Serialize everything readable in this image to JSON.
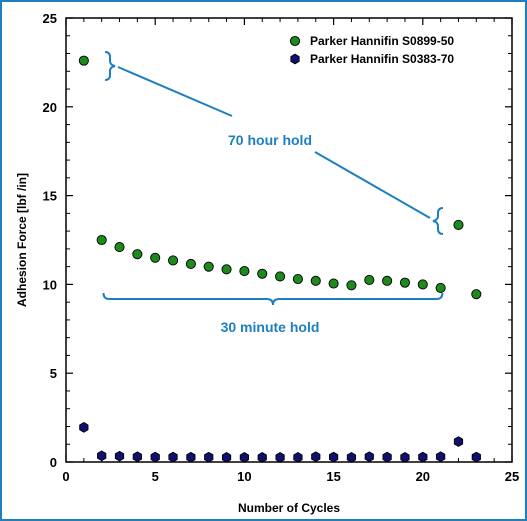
{
  "chart_data": {
    "type": "scatter",
    "title": "",
    "xlabel": "Number of Cycles",
    "ylabel": "Adhesion Force [lbf /in]",
    "xlim": [
      0,
      25
    ],
    "ylim": [
      0,
      25
    ],
    "xticks": [
      "0",
      "5",
      "10",
      "15",
      "20",
      "25"
    ],
    "yticks": [
      "0",
      "5",
      "10",
      "15",
      "20",
      "25"
    ],
    "grid": false,
    "legend_position": "top-right",
    "series": [
      {
        "name": "Parker  Hannifin S0899-50",
        "marker": "circle",
        "color": "#1e8a1e",
        "x": [
          1,
          2,
          3,
          4,
          5,
          6,
          7,
          8,
          9,
          10,
          11,
          12,
          13,
          14,
          15,
          16,
          17,
          18,
          19,
          20,
          21,
          22,
          23
        ],
        "y": [
          22.6,
          12.5,
          12.1,
          11.7,
          11.5,
          11.35,
          11.15,
          11.0,
          10.85,
          10.75,
          10.6,
          10.45,
          10.3,
          10.2,
          10.05,
          9.95,
          10.25,
          10.2,
          10.1,
          10.0,
          9.8,
          13.35,
          9.45
        ]
      },
      {
        "name": "Parker Hannifin S0383-70",
        "marker": "hexagon",
        "color": "#101070",
        "x": [
          1,
          2,
          3,
          4,
          5,
          6,
          7,
          8,
          9,
          10,
          11,
          12,
          13,
          14,
          15,
          16,
          17,
          18,
          19,
          20,
          21,
          22,
          23
        ],
        "y": [
          1.95,
          0.35,
          0.33,
          0.3,
          0.28,
          0.28,
          0.27,
          0.27,
          0.26,
          0.26,
          0.26,
          0.26,
          0.26,
          0.3,
          0.28,
          0.26,
          0.3,
          0.28,
          0.26,
          0.28,
          0.3,
          1.15,
          0.28
        ]
      }
    ],
    "annotations": [
      {
        "text": "70 hour hold",
        "color": "#1e7fc0",
        "x": 11.5,
        "y": 18.0
      },
      {
        "text": "30 minute hold",
        "color": "#1e7fc0",
        "x": 11.5,
        "y": 7.6
      }
    ]
  }
}
